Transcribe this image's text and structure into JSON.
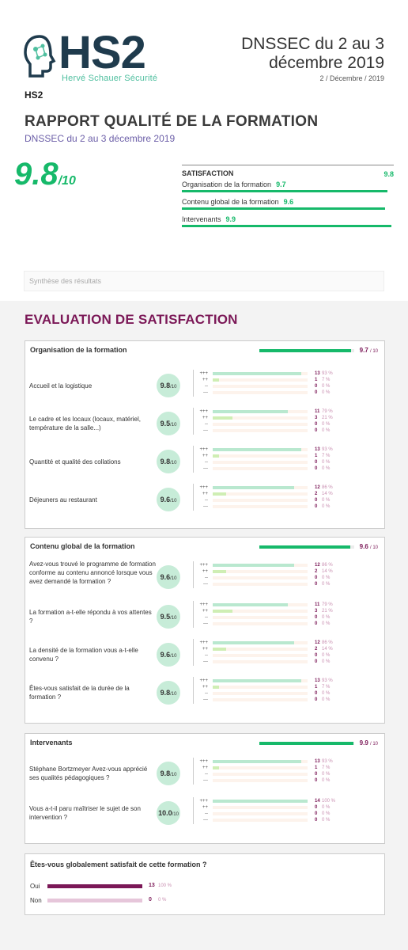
{
  "header": {
    "logo_text": "HS2",
    "logo_subtitle": "Hervé Schauer Sécurité",
    "doc_title": "DNSSEC du 2 au 3 décembre 2019",
    "doc_date": "2 / Décembre / 2019",
    "org": "HS2",
    "report_title": "RAPPORT QUALITÉ DE LA FORMATION",
    "report_subtitle": "DNSSEC du 2 au 3 décembre 2019"
  },
  "overall": {
    "score": "9.8",
    "denominator": "/10"
  },
  "satisfaction": {
    "label": "SATISFACTION",
    "value": "9.8",
    "items": [
      {
        "label": "Organisation de la formation",
        "value": "9.7",
        "score": 9.7
      },
      {
        "label": "Contenu global de la formation",
        "value": "9.6",
        "score": 9.6
      },
      {
        "label": "Intervenants",
        "value": "9.9",
        "score": 9.9
      }
    ]
  },
  "synthesis_label": "Synthèse des résultats",
  "section_title": "EVALUATION DE SATISFACTION",
  "rating_labels": [
    "+++",
    "++",
    "--",
    "---"
  ],
  "colors": {
    "accent": "#7b1857",
    "green": "#16b96a",
    "bar_plus3": "#b9e8cf",
    "bar_plus2": "#cfeeb4",
    "bar_bg": "#fdf3ec"
  },
  "cards": [
    {
      "title": "Organisation de la formation",
      "value": "9.7",
      "denominator": "/ 10",
      "score": 9.7,
      "questions": [
        {
          "text": "Accueil et la logistique",
          "score": "9.8",
          "den": "/10",
          "rows": [
            {
              "count": "13",
              "pct": "93 %",
              "f": 0.93
            },
            {
              "count": "1",
              "pct": "7 %",
              "f": 0.07
            },
            {
              "count": "0",
              "pct": "0 %",
              "f": 0
            },
            {
              "count": "0",
              "pct": "0 %",
              "f": 0
            }
          ]
        },
        {
          "text": "Le cadre et les locaux (locaux, matériel, température de la salle...)",
          "score": "9.5",
          "den": "/10",
          "rows": [
            {
              "count": "11",
              "pct": "79 %",
              "f": 0.79
            },
            {
              "count": "3",
              "pct": "21 %",
              "f": 0.21
            },
            {
              "count": "0",
              "pct": "0 %",
              "f": 0
            },
            {
              "count": "0",
              "pct": "0 %",
              "f": 0
            }
          ]
        },
        {
          "text": "Quantité et qualité des collations",
          "score": "9.8",
          "den": "/10",
          "rows": [
            {
              "count": "13",
              "pct": "93 %",
              "f": 0.93
            },
            {
              "count": "1",
              "pct": "7 %",
              "f": 0.07
            },
            {
              "count": "0",
              "pct": "0 %",
              "f": 0
            },
            {
              "count": "0",
              "pct": "0 %",
              "f": 0
            }
          ]
        },
        {
          "text": "Déjeuners au restaurant",
          "score": "9.6",
          "den": "/10",
          "rows": [
            {
              "count": "12",
              "pct": "86 %",
              "f": 0.86
            },
            {
              "count": "2",
              "pct": "14 %",
              "f": 0.14
            },
            {
              "count": "0",
              "pct": "0 %",
              "f": 0
            },
            {
              "count": "0",
              "pct": "0 %",
              "f": 0
            }
          ]
        }
      ]
    },
    {
      "title": "Contenu global de la formation",
      "value": "9.6",
      "denominator": "/ 10",
      "score": 9.6,
      "questions": [
        {
          "text": "Avez-vous trouvé le programme de formation conforme au contenu annoncé lorsque vous avez demandé la formation ?",
          "score": "9.6",
          "den": "/10",
          "rows": [
            {
              "count": "12",
              "pct": "86 %",
              "f": 0.86
            },
            {
              "count": "2",
              "pct": "14 %",
              "f": 0.14
            },
            {
              "count": "0",
              "pct": "0 %",
              "f": 0
            },
            {
              "count": "0",
              "pct": "0 %",
              "f": 0
            }
          ]
        },
        {
          "text": "La formation a-t-elle répondu à vos attentes ?",
          "score": "9.5",
          "den": "/10",
          "rows": [
            {
              "count": "11",
              "pct": "79 %",
              "f": 0.79
            },
            {
              "count": "3",
              "pct": "21 %",
              "f": 0.21
            },
            {
              "count": "0",
              "pct": "0 %",
              "f": 0
            },
            {
              "count": "0",
              "pct": "0 %",
              "f": 0
            }
          ]
        },
        {
          "text": "La densité de la formation vous a-t-elle convenu ?",
          "score": "9.6",
          "den": "/10",
          "rows": [
            {
              "count": "12",
              "pct": "86 %",
              "f": 0.86
            },
            {
              "count": "2",
              "pct": "14 %",
              "f": 0.14
            },
            {
              "count": "0",
              "pct": "0 %",
              "f": 0
            },
            {
              "count": "0",
              "pct": "0 %",
              "f": 0
            }
          ]
        },
        {
          "text": "Êtes-vous satisfait de la durée de la formation ?",
          "score": "9.8",
          "den": "/10",
          "rows": [
            {
              "count": "13",
              "pct": "93 %",
              "f": 0.93
            },
            {
              "count": "1",
              "pct": "7 %",
              "f": 0.07
            },
            {
              "count": "0",
              "pct": "0 %",
              "f": 0
            },
            {
              "count": "0",
              "pct": "0 %",
              "f": 0
            }
          ]
        }
      ]
    },
    {
      "title": "Intervenants",
      "value": "9.9",
      "denominator": "/ 10",
      "score": 9.9,
      "questions": [
        {
          "text": "Stéphane Bortzmeyer Avez-vous apprécié ses qualités pédagogiques ?",
          "score": "9.8",
          "den": "/10",
          "rows": [
            {
              "count": "13",
              "pct": "93 %",
              "f": 0.93
            },
            {
              "count": "1",
              "pct": "7 %",
              "f": 0.07
            },
            {
              "count": "0",
              "pct": "0 %",
              "f": 0
            },
            {
              "count": "0",
              "pct": "0 %",
              "f": 0
            }
          ]
        },
        {
          "text": "Vous a-t-il paru maîtriser le sujet de son intervention ?",
          "score": "10.0",
          "den": "/10",
          "rows": [
            {
              "count": "14",
              "pct": "100 %",
              "f": 1.0
            },
            {
              "count": "0",
              "pct": "0 %",
              "f": 0
            },
            {
              "count": "0",
              "pct": "0 %",
              "f": 0
            },
            {
              "count": "0",
              "pct": "0 %",
              "f": 0
            }
          ]
        }
      ]
    }
  ],
  "final": {
    "question": "Êtes-vous globalement satisfait de cette formation ?",
    "rows": [
      {
        "label": "Oui",
        "count": "13",
        "pct": "100 %",
        "f": 1.0
      },
      {
        "label": "Non",
        "count": "0",
        "pct": "0 %",
        "f": 0
      }
    ]
  }
}
